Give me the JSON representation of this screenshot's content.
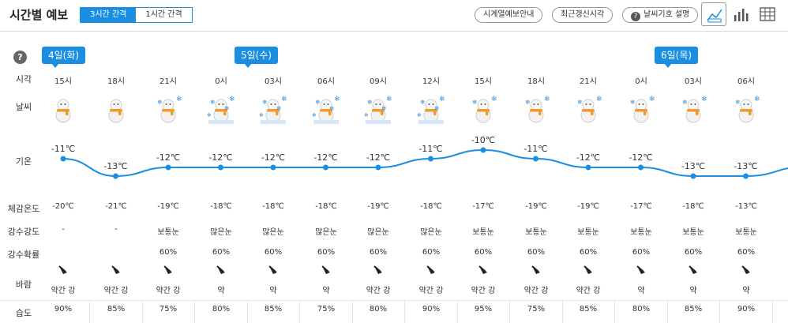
{
  "header": {
    "title": "시간별 예보",
    "interval_tabs": [
      "3시간 간격",
      "1시간 간격"
    ],
    "active_interval": "3시간 간격",
    "buttons": {
      "timeseries": "시계열예보안내",
      "refresh": "최근갱신시각",
      "legend": "날씨기호 설명"
    },
    "legend_icon": "?",
    "views": [
      "line-chart-icon",
      "bar-chart-icon",
      "table-icon"
    ]
  },
  "help_icon": "?",
  "row_labels": {
    "time": "시각",
    "weather": "날씨",
    "temp": "기온",
    "feels": "체감온도",
    "precip": "강수강도",
    "prob": "강수확률",
    "wind": "바람",
    "humidity": "습도"
  },
  "days": [
    "4일(화)",
    "5일(수)",
    "6일(목)"
  ],
  "columns": [
    {
      "hour": "15시",
      "icon": "snowman",
      "temp": "-11℃",
      "tempv": -11,
      "feels": "-20℃",
      "precip": "-",
      "prob": "",
      "wind": "약간 강",
      "humidity": "90%"
    },
    {
      "hour": "18시",
      "icon": "snowman",
      "temp": "-13℃",
      "tempv": -13,
      "feels": "-21℃",
      "precip": "-",
      "prob": "",
      "wind": "약간 강",
      "humidity": "85%"
    },
    {
      "hour": "21시",
      "icon": "snowman-snow",
      "temp": "-12℃",
      "tempv": -12,
      "feels": "-19℃",
      "precip": "보통눈",
      "prob": "60%",
      "wind": "약간 강",
      "humidity": "75%"
    },
    {
      "hour": "0시",
      "icon": "snowman-heavy",
      "temp": "-12℃",
      "tempv": -12,
      "feels": "-18℃",
      "precip": "많은눈",
      "prob": "60%",
      "wind": "약",
      "humidity": "80%"
    },
    {
      "hour": "03시",
      "icon": "snowman-heavy",
      "temp": "-12℃",
      "tempv": -12,
      "feels": "-18℃",
      "precip": "많은눈",
      "prob": "60%",
      "wind": "약",
      "humidity": "85%"
    },
    {
      "hour": "06시",
      "icon": "snowman-heavy",
      "temp": "-12℃",
      "tempv": -12,
      "feels": "-18℃",
      "precip": "많은눈",
      "prob": "60%",
      "wind": "약",
      "humidity": "75%"
    },
    {
      "hour": "09시",
      "icon": "snowman-heavy",
      "temp": "-12℃",
      "tempv": -12,
      "feels": "-19℃",
      "precip": "많은눈",
      "prob": "60%",
      "wind": "약간 강",
      "humidity": "80%"
    },
    {
      "hour": "12시",
      "icon": "snowman-heavy",
      "temp": "-11℃",
      "tempv": -11,
      "feels": "-18℃",
      "precip": "많은눈",
      "prob": "60%",
      "wind": "약간 강",
      "humidity": "90%"
    },
    {
      "hour": "15시",
      "icon": "snowman-snow",
      "temp": "-10℃",
      "tempv": -10,
      "feels": "-17℃",
      "precip": "보통눈",
      "prob": "60%",
      "wind": "약간 강",
      "humidity": "95%"
    },
    {
      "hour": "18시",
      "icon": "snowman-snow",
      "temp": "-11℃",
      "tempv": -11,
      "feels": "-19℃",
      "precip": "보통눈",
      "prob": "60%",
      "wind": "약간 강",
      "humidity": "75%"
    },
    {
      "hour": "21시",
      "icon": "snowman-snow",
      "temp": "-12℃",
      "tempv": -12,
      "feels": "-19℃",
      "precip": "보통눈",
      "prob": "60%",
      "wind": "약간 강",
      "humidity": "85%"
    },
    {
      "hour": "0시",
      "icon": "snowman-snow",
      "temp": "-12℃",
      "tempv": -12,
      "feels": "-17℃",
      "precip": "보통눈",
      "prob": "60%",
      "wind": "약",
      "humidity": "80%"
    },
    {
      "hour": "03시",
      "icon": "snowman-snow",
      "temp": "-13℃",
      "tempv": -13,
      "feels": "-18℃",
      "precip": "보통눈",
      "prob": "60%",
      "wind": "약",
      "humidity": "85%"
    },
    {
      "hour": "06시",
      "icon": "snowman-snow",
      "temp": "-13℃",
      "tempv": -13,
      "feels": "-13℃",
      "precip": "보통눈",
      "prob": "60%",
      "wind": "약",
      "humidity": "90%"
    }
  ],
  "colors": {
    "accent": "#1a8ee1",
    "line": "#1a8ee1",
    "scarf": "#f29a2e"
  }
}
